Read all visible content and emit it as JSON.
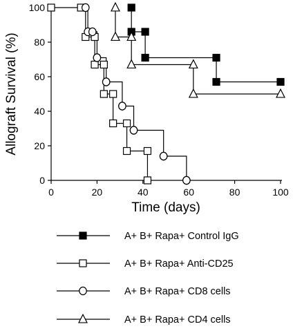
{
  "chart_data": {
    "type": "line",
    "step": true,
    "title": "",
    "xlabel": "Time (days)",
    "ylabel": "Allograft Survival (%)",
    "xlim": [
      0,
      100
    ],
    "ylim": [
      0,
      100
    ],
    "xticks": [
      0,
      20,
      40,
      60,
      80,
      100
    ],
    "yticks": [
      0,
      20,
      40,
      60,
      80,
      100
    ],
    "grid": false,
    "legend_position": "bottom",
    "series": [
      {
        "name": "A+ B+ Rapa+ Control IgG",
        "marker": "square-filled",
        "x": [
          35,
          35,
          41,
          41,
          72,
          72,
          100
        ],
        "y": [
          100,
          86,
          86,
          71,
          71,
          57,
          57
        ]
      },
      {
        "name": "A+ B+ Rapa+ Anti-CD25",
        "marker": "square-open",
        "x": [
          0,
          13,
          15,
          19,
          19,
          23,
          23,
          27,
          27,
          33,
          33,
          42,
          42
        ],
        "y": [
          100,
          100,
          83,
          83,
          67,
          67,
          50,
          50,
          33,
          33,
          17,
          17,
          0
        ]
      },
      {
        "name": "A+ B+ Rapa+ CD8 cells",
        "marker": "circle-open",
        "x": [
          15,
          16,
          18,
          20,
          20,
          24,
          24,
          31,
          31,
          36,
          36,
          49,
          49,
          59,
          59
        ],
        "y": [
          100,
          86,
          86,
          71,
          71,
          57,
          57,
          43,
          43,
          29,
          29,
          14,
          14,
          0,
          0
        ]
      },
      {
        "name": "A+ B+ Rapa+ CD4 cells",
        "marker": "triangle-open",
        "x": [
          28,
          28,
          35,
          35,
          62,
          62,
          100
        ],
        "y": [
          100,
          83,
          83,
          67,
          67,
          50,
          50
        ]
      }
    ]
  }
}
